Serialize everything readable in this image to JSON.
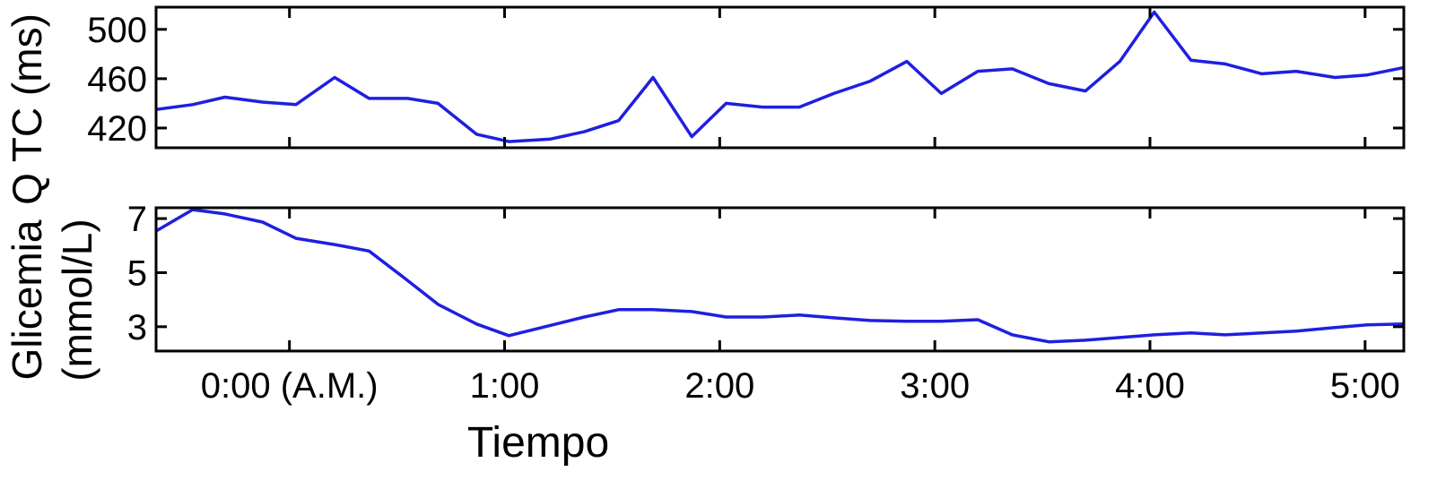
{
  "chart_data": [
    {
      "type": "line",
      "ylabel": "Q TC  (ms)",
      "x": [
        -0.62,
        -0.45,
        -0.3,
        -0.125,
        0.03,
        0.21,
        0.37,
        0.55,
        0.69,
        0.87,
        1.02,
        1.21,
        1.37,
        1.53,
        1.69,
        1.87,
        2.03,
        2.2,
        2.37,
        2.53,
        2.7,
        2.87,
        3.03,
        3.2,
        3.36,
        3.53,
        3.7,
        3.86,
        4.02,
        4.19,
        4.35,
        4.52,
        4.68,
        4.86,
        5.01,
        5.18
      ],
      "series": [
        {
          "color": "#1f1fe0",
          "values": [
            435,
            439,
            445,
            441,
            439,
            461,
            444,
            444,
            440,
            415,
            409,
            411,
            417,
            426,
            461,
            413,
            440,
            437,
            437,
            448,
            458,
            474,
            448,
            466,
            468,
            456,
            450,
            474,
            514,
            475,
            472,
            464,
            466,
            461,
            463,
            469
          ]
        }
      ],
      "xlim": [
        -0.62,
        5.18
      ],
      "xticks": [
        0,
        1,
        2,
        3,
        4,
        5
      ],
      "ylim": [
        404,
        518
      ],
      "yticks": [
        420,
        460,
        500
      ]
    },
    {
      "type": "line",
      "ylabel": [
        "Glicemia",
        "(mmol/L)"
      ],
      "xlabel": "Tiempo",
      "x": [
        -0.62,
        -0.45,
        -0.3,
        -0.125,
        0.03,
        0.21,
        0.37,
        0.53,
        0.69,
        0.87,
        1.02,
        1.21,
        1.37,
        1.53,
        1.69,
        1.87,
        2.03,
        2.2,
        2.37,
        2.53,
        2.7,
        2.87,
        3.03,
        3.2,
        3.36,
        3.53,
        3.7,
        3.86,
        4.02,
        4.19,
        4.35,
        4.52,
        4.68,
        4.86,
        5.01,
        5.18
      ],
      "series": [
        {
          "color": "#1f1fe0",
          "values": [
            6.54,
            7.33,
            7.17,
            6.87,
            6.27,
            6.04,
            5.8,
            4.83,
            3.83,
            3.1,
            2.67,
            3.04,
            3.36,
            3.63,
            3.63,
            3.56,
            3.36,
            3.36,
            3.43,
            3.33,
            3.23,
            3.2,
            3.2,
            3.26,
            2.7,
            2.44,
            2.5,
            2.6,
            2.7,
            2.77,
            2.7,
            2.77,
            2.84,
            2.97,
            3.07,
            3.1
          ]
        }
      ],
      "xlim": [
        -0.62,
        5.18
      ],
      "xticks": [
        {
          "value": 0,
          "label": "0:00 (A.M.)"
        },
        {
          "value": 1,
          "label": "1:00"
        },
        {
          "value": 2,
          "label": "2:00"
        },
        {
          "value": 3,
          "label": "3:00"
        },
        {
          "value": 4,
          "label": "4:00"
        },
        {
          "value": 5,
          "label": "5:00"
        }
      ],
      "ylim": [
        2.1,
        7.4
      ],
      "yticks": [
        3,
        5,
        7
      ]
    }
  ]
}
